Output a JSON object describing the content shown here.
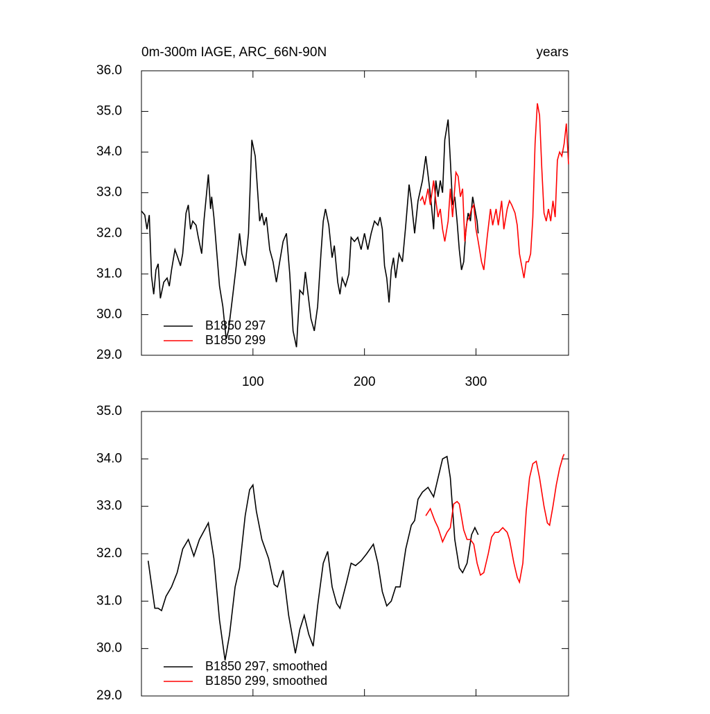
{
  "chart_data": [
    {
      "type": "line",
      "title": "0m-300m IAGE, ARC_66N-90N",
      "units_label": "years",
      "xlim": [
        0,
        383
      ],
      "xticks": [
        100,
        200,
        300
      ],
      "show_xtick_labels": true,
      "ylim": [
        29,
        36
      ],
      "yticks": [
        {
          "value": 29,
          "label": "29.0"
        },
        {
          "value": 30,
          "label": "30.0"
        },
        {
          "value": 31,
          "label": "31.0"
        },
        {
          "value": 32,
          "label": "32.0"
        },
        {
          "value": 33,
          "label": "33.0"
        },
        {
          "value": 34,
          "label": "34.0"
        },
        {
          "value": 35,
          "label": "35.0"
        },
        {
          "value": 36,
          "label": "36.0"
        }
      ],
      "legend": "lower left",
      "series": [
        {
          "name": "B1850 297",
          "color": "#000000",
          "x": [
            0,
            3,
            5,
            7,
            9,
            11,
            13,
            15,
            17,
            20,
            23,
            25,
            27,
            30,
            32,
            35,
            37,
            40,
            42,
            44,
            46,
            49,
            51,
            54,
            56,
            60,
            62,
            63,
            65,
            70,
            73,
            76,
            78,
            82,
            85,
            88,
            90,
            93,
            96,
            99,
            102,
            106,
            108,
            110,
            112,
            115,
            118,
            121,
            124,
            127,
            130,
            133,
            136,
            139,
            142,
            145,
            147,
            149,
            152,
            155,
            158,
            161,
            163,
            165,
            168,
            171,
            173,
            176,
            178,
            180,
            183,
            186,
            188,
            191,
            194,
            197,
            200,
            203,
            206,
            209,
            212,
            214,
            216,
            218,
            220,
            222,
            224,
            226,
            228,
            231,
            234,
            237,
            240,
            242,
            245,
            248,
            252,
            255,
            258,
            260,
            262,
            264,
            266,
            268,
            270,
            272,
            275,
            277,
            279,
            281,
            283,
            285,
            287,
            289,
            291,
            293,
            295,
            297,
            299,
            301,
            302
          ],
          "values": [
            32.55,
            32.45,
            32.1,
            32.45,
            30.95,
            30.5,
            31.1,
            31.25,
            30.4,
            30.8,
            30.9,
            30.7,
            31.1,
            31.6,
            31.45,
            31.2,
            31.5,
            32.5,
            32.7,
            32.1,
            32.3,
            32.2,
            31.9,
            31.5,
            32.3,
            33.45,
            32.6,
            32.9,
            32.4,
            30.7,
            30.2,
            29.4,
            29.6,
            30.5,
            31.2,
            32.0,
            31.5,
            31.2,
            32.0,
            34.3,
            33.9,
            32.3,
            32.5,
            32.2,
            32.4,
            31.6,
            31.3,
            30.8,
            31.3,
            31.8,
            32.0,
            31.0,
            29.6,
            29.2,
            30.6,
            30.5,
            31.05,
            30.6,
            29.9,
            29.6,
            30.2,
            31.5,
            32.3,
            32.6,
            32.2,
            31.4,
            31.7,
            30.8,
            30.5,
            30.9,
            30.7,
            31.0,
            31.9,
            31.8,
            31.9,
            31.6,
            32.0,
            31.6,
            32.0,
            32.3,
            32.2,
            32.4,
            32.1,
            31.2,
            30.9,
            30.3,
            31.1,
            31.4,
            30.9,
            31.5,
            31.3,
            32.2,
            33.2,
            32.8,
            32.0,
            32.8,
            33.3,
            33.9,
            33.2,
            32.7,
            32.1,
            33.3,
            32.9,
            33.3,
            33.0,
            34.3,
            34.8,
            33.8,
            32.7,
            32.9,
            32.3,
            31.6,
            31.1,
            31.3,
            32.1,
            32.5,
            32.3,
            32.9,
            32.6,
            32.3,
            32.0
          ]
        },
        {
          "name": "B1850 299",
          "color": "#ff0000",
          "x": [
            250,
            252,
            254,
            257,
            259,
            262,
            264,
            266,
            268,
            270,
            272,
            275,
            277,
            279,
            282,
            284,
            286,
            288,
            290,
            292,
            294,
            296,
            298,
            300,
            302,
            305,
            307,
            310,
            313,
            315,
            318,
            320,
            323,
            325,
            328,
            330,
            332,
            335,
            337,
            339,
            341,
            343,
            345,
            347,
            349,
            351,
            353,
            355,
            357,
            359,
            361,
            363,
            365,
            367,
            369,
            371,
            373,
            375,
            377,
            379,
            381,
            383
          ],
          "values": [
            32.8,
            32.9,
            32.7,
            33.1,
            32.7,
            33.3,
            32.8,
            32.4,
            32.6,
            32.1,
            31.8,
            32.3,
            33.1,
            32.4,
            33.5,
            33.4,
            32.9,
            33.1,
            31.8,
            32.3,
            32.4,
            32.6,
            32.7,
            32.1,
            31.8,
            31.3,
            31.1,
            31.9,
            32.6,
            32.2,
            32.6,
            32.2,
            32.8,
            32.1,
            32.6,
            32.8,
            32.7,
            32.5,
            32.2,
            31.5,
            31.2,
            30.9,
            31.3,
            31.3,
            31.5,
            32.4,
            34.2,
            35.2,
            34.9,
            33.6,
            32.5,
            32.3,
            32.6,
            32.3,
            32.8,
            32.4,
            33.8,
            34.0,
            33.9,
            34.2,
            34.7,
            33.7
          ]
        }
      ]
    },
    {
      "type": "line",
      "xlim": [
        0,
        383
      ],
      "xticks": [
        100,
        200,
        300
      ],
      "show_xtick_labels": false,
      "ylim": [
        29,
        35
      ],
      "yticks": [
        {
          "value": 29,
          "label": "29.0"
        },
        {
          "value": 30,
          "label": "30.0"
        },
        {
          "value": 31,
          "label": "31.0"
        },
        {
          "value": 32,
          "label": "32.0"
        },
        {
          "value": 33,
          "label": "33.0"
        },
        {
          "value": 34,
          "label": "34.0"
        },
        {
          "value": 35,
          "label": "35.0"
        }
      ],
      "legend": "lower left",
      "series": [
        {
          "name": "B1850 297, smoothed",
          "color": "#000000",
          "x": [
            6,
            9,
            12,
            15,
            18,
            22,
            27,
            32,
            37,
            42,
            47,
            52,
            60,
            65,
            70,
            75,
            79,
            84,
            88,
            93,
            97,
            100,
            103,
            108,
            114,
            119,
            122,
            127,
            132,
            138,
            142,
            146,
            150,
            154,
            158,
            163,
            167,
            171,
            175,
            178,
            184,
            188,
            192,
            197,
            202,
            208,
            212,
            216,
            220,
            224,
            228,
            232,
            237,
            242,
            245,
            248,
            252,
            257,
            262,
            266,
            270,
            274,
            277,
            281,
            285,
            288,
            292,
            296,
            299,
            302
          ],
          "values": [
            31.85,
            31.35,
            30.85,
            30.85,
            30.8,
            31.1,
            31.3,
            31.6,
            32.1,
            32.3,
            31.95,
            32.3,
            32.65,
            31.9,
            30.6,
            29.75,
            30.3,
            31.3,
            31.7,
            32.8,
            33.35,
            33.45,
            32.9,
            32.3,
            31.9,
            31.35,
            31.3,
            31.65,
            30.7,
            29.9,
            30.4,
            30.7,
            30.3,
            30.05,
            30.9,
            31.8,
            32.05,
            31.3,
            30.95,
            30.85,
            31.4,
            31.8,
            31.75,
            31.85,
            32.0,
            32.2,
            31.8,
            31.2,
            30.9,
            31.0,
            31.3,
            31.3,
            32.1,
            32.6,
            32.7,
            33.15,
            33.3,
            33.4,
            33.2,
            33.6,
            34.0,
            34.05,
            33.6,
            32.3,
            31.7,
            31.6,
            31.8,
            32.4,
            32.55,
            32.4
          ]
        },
        {
          "name": "B1850 299, smoothed",
          "color": "#ff0000",
          "x": [
            255,
            259,
            263,
            266,
            270,
            274,
            277,
            280,
            283,
            285,
            289,
            292,
            295,
            298,
            301,
            304,
            307,
            311,
            314,
            317,
            320,
            324,
            328,
            330,
            334,
            337,
            339,
            342,
            345,
            348,
            351,
            354,
            357,
            361,
            364,
            366,
            369,
            372,
            375,
            378,
            379
          ],
          "values": [
            32.8,
            32.95,
            32.7,
            32.55,
            32.25,
            32.45,
            32.55,
            33.05,
            33.1,
            33.05,
            32.5,
            32.3,
            32.3,
            32.2,
            31.8,
            31.55,
            31.6,
            32.0,
            32.35,
            32.45,
            32.45,
            32.55,
            32.45,
            32.3,
            31.8,
            31.5,
            31.4,
            31.8,
            32.9,
            33.6,
            33.9,
            33.95,
            33.6,
            33.0,
            32.65,
            32.6,
            33.0,
            33.45,
            33.8,
            34.05,
            34.1
          ]
        }
      ]
    }
  ]
}
